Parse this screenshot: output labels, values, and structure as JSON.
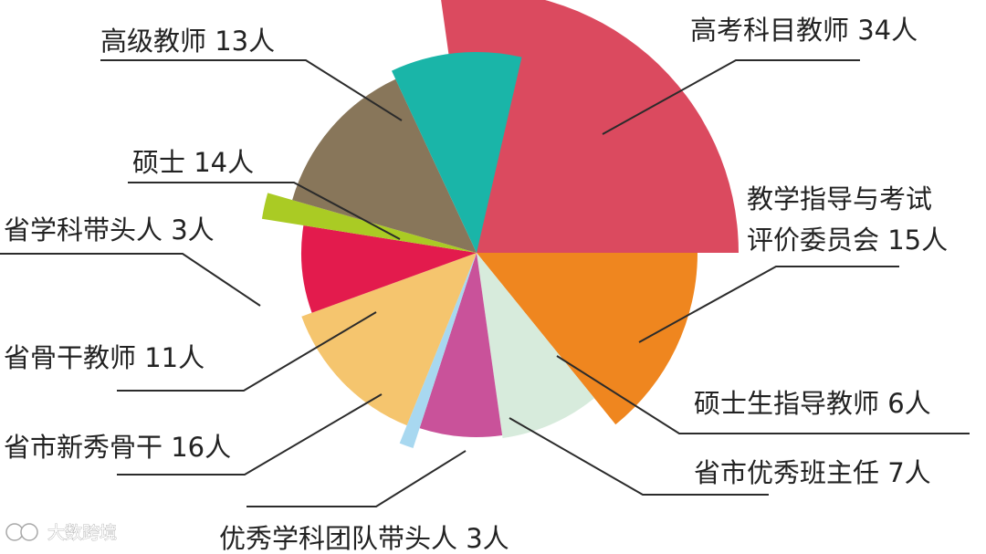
{
  "chart_data": {
    "type": "pie",
    "style": "rose",
    "unit": "人",
    "slices": [
      {
        "name": "高考科目教师",
        "value": 34,
        "color": "#db4a5f",
        "label_lines": [
          "高考科目教师 34人"
        ]
      },
      {
        "name": "教学指导与考试评价委员会",
        "value": 15,
        "color": "#ef861f",
        "label_lines": [
          "教学指导与考试",
          "评价委员会 15人"
        ]
      },
      {
        "name": "硕士生指导教师",
        "value": 6,
        "color": "#d7ebdc",
        "label_lines": [
          "硕士生指导教师 6人"
        ]
      },
      {
        "name": "省市优秀班主任",
        "value": 7,
        "color": "#c9529a",
        "label_lines": [
          "省市优秀班主任 7人"
        ]
      },
      {
        "name": "优秀学科团队带头人",
        "value": 3,
        "color": "#a8d8f0",
        "label_lines": [
          "优秀学科团队带头人 3人"
        ]
      },
      {
        "name": "省市新秀骨干",
        "value": 16,
        "color": "#f5c56e",
        "label_lines": [
          "省市新秀骨干 16人"
        ]
      },
      {
        "name": "省骨干教师",
        "value": 11,
        "color": "#e31b4d",
        "label_lines": [
          "省骨干教师 11人"
        ]
      },
      {
        "name": "省学科带头人",
        "value": 3,
        "color": "#aacb24",
        "label_lines": [
          "省学科带头人 3人"
        ]
      },
      {
        "name": "硕士",
        "value": 14,
        "color": "#88765a",
        "label_lines": [
          "硕士 14人"
        ]
      },
      {
        "name": "高级教师",
        "value": 13,
        "color": "#1ab5a8",
        "label_lines": [
          "高级教师 13人"
        ]
      }
    ]
  },
  "watermark": {
    "text": "大数跨境",
    "icon": "logo-icon"
  }
}
